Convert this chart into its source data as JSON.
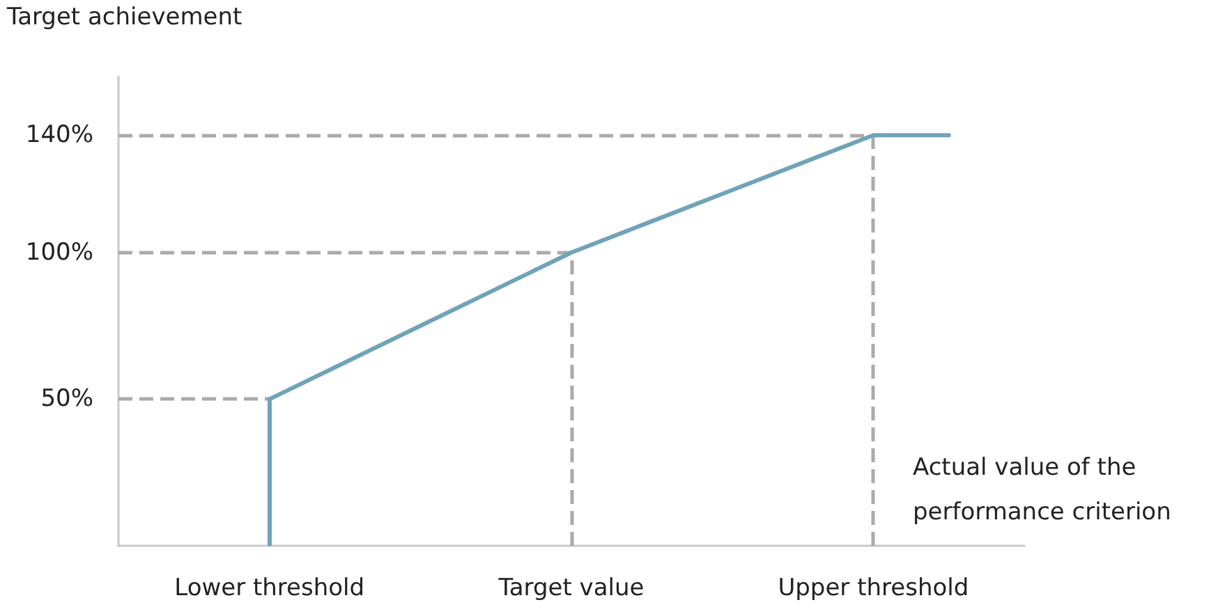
{
  "chart_data": {
    "type": "line",
    "xlabel": "Actual value of the performance criterion",
    "ylabel": "Target achievement",
    "categories": [
      null,
      null,
      "Lower threshold",
      null,
      null,
      null,
      "Target value",
      null,
      null,
      null,
      "Upper threshold",
      null,
      null
    ],
    "series": [
      {
        "color": "#6fa3b8",
        "values": [
          null,
          null,
          50,
          62.5,
          75,
          87.5,
          100,
          110,
          120,
          130,
          140,
          140,
          null
        ]
      }
    ],
    "ylim": [
      0,
      160
    ],
    "yticks": [
      {
        "value": 50,
        "label": "50%"
      },
      {
        "value": 100,
        "label": "100%"
      },
      {
        "value": 140,
        "label": "140%"
      }
    ],
    "ref_lines": [
      {
        "axis": "x",
        "value": "Lower threshold",
        "color": "#6fa3b8",
        "line_style": "solid"
      },
      {
        "axis": "y",
        "value": 50,
        "color": "#aaaaaa",
        "line_style": "dashed"
      },
      {
        "axis": "y",
        "value": 100,
        "color": "#aaaaaa",
        "line_style": "dashed"
      },
      {
        "axis": "y",
        "value": 140,
        "color": "#aaaaaa",
        "line_style": "dashed"
      },
      {
        "axis": "x",
        "value": "Target value",
        "color": "#aaaaaa",
        "line_style": "dashed"
      },
      {
        "axis": "x",
        "value": "Upper threshold",
        "color": "#aaaaaa",
        "line_style": "dashed"
      }
    ],
    "grid": false,
    "marker": "none",
    "line_style": "solid"
  }
}
